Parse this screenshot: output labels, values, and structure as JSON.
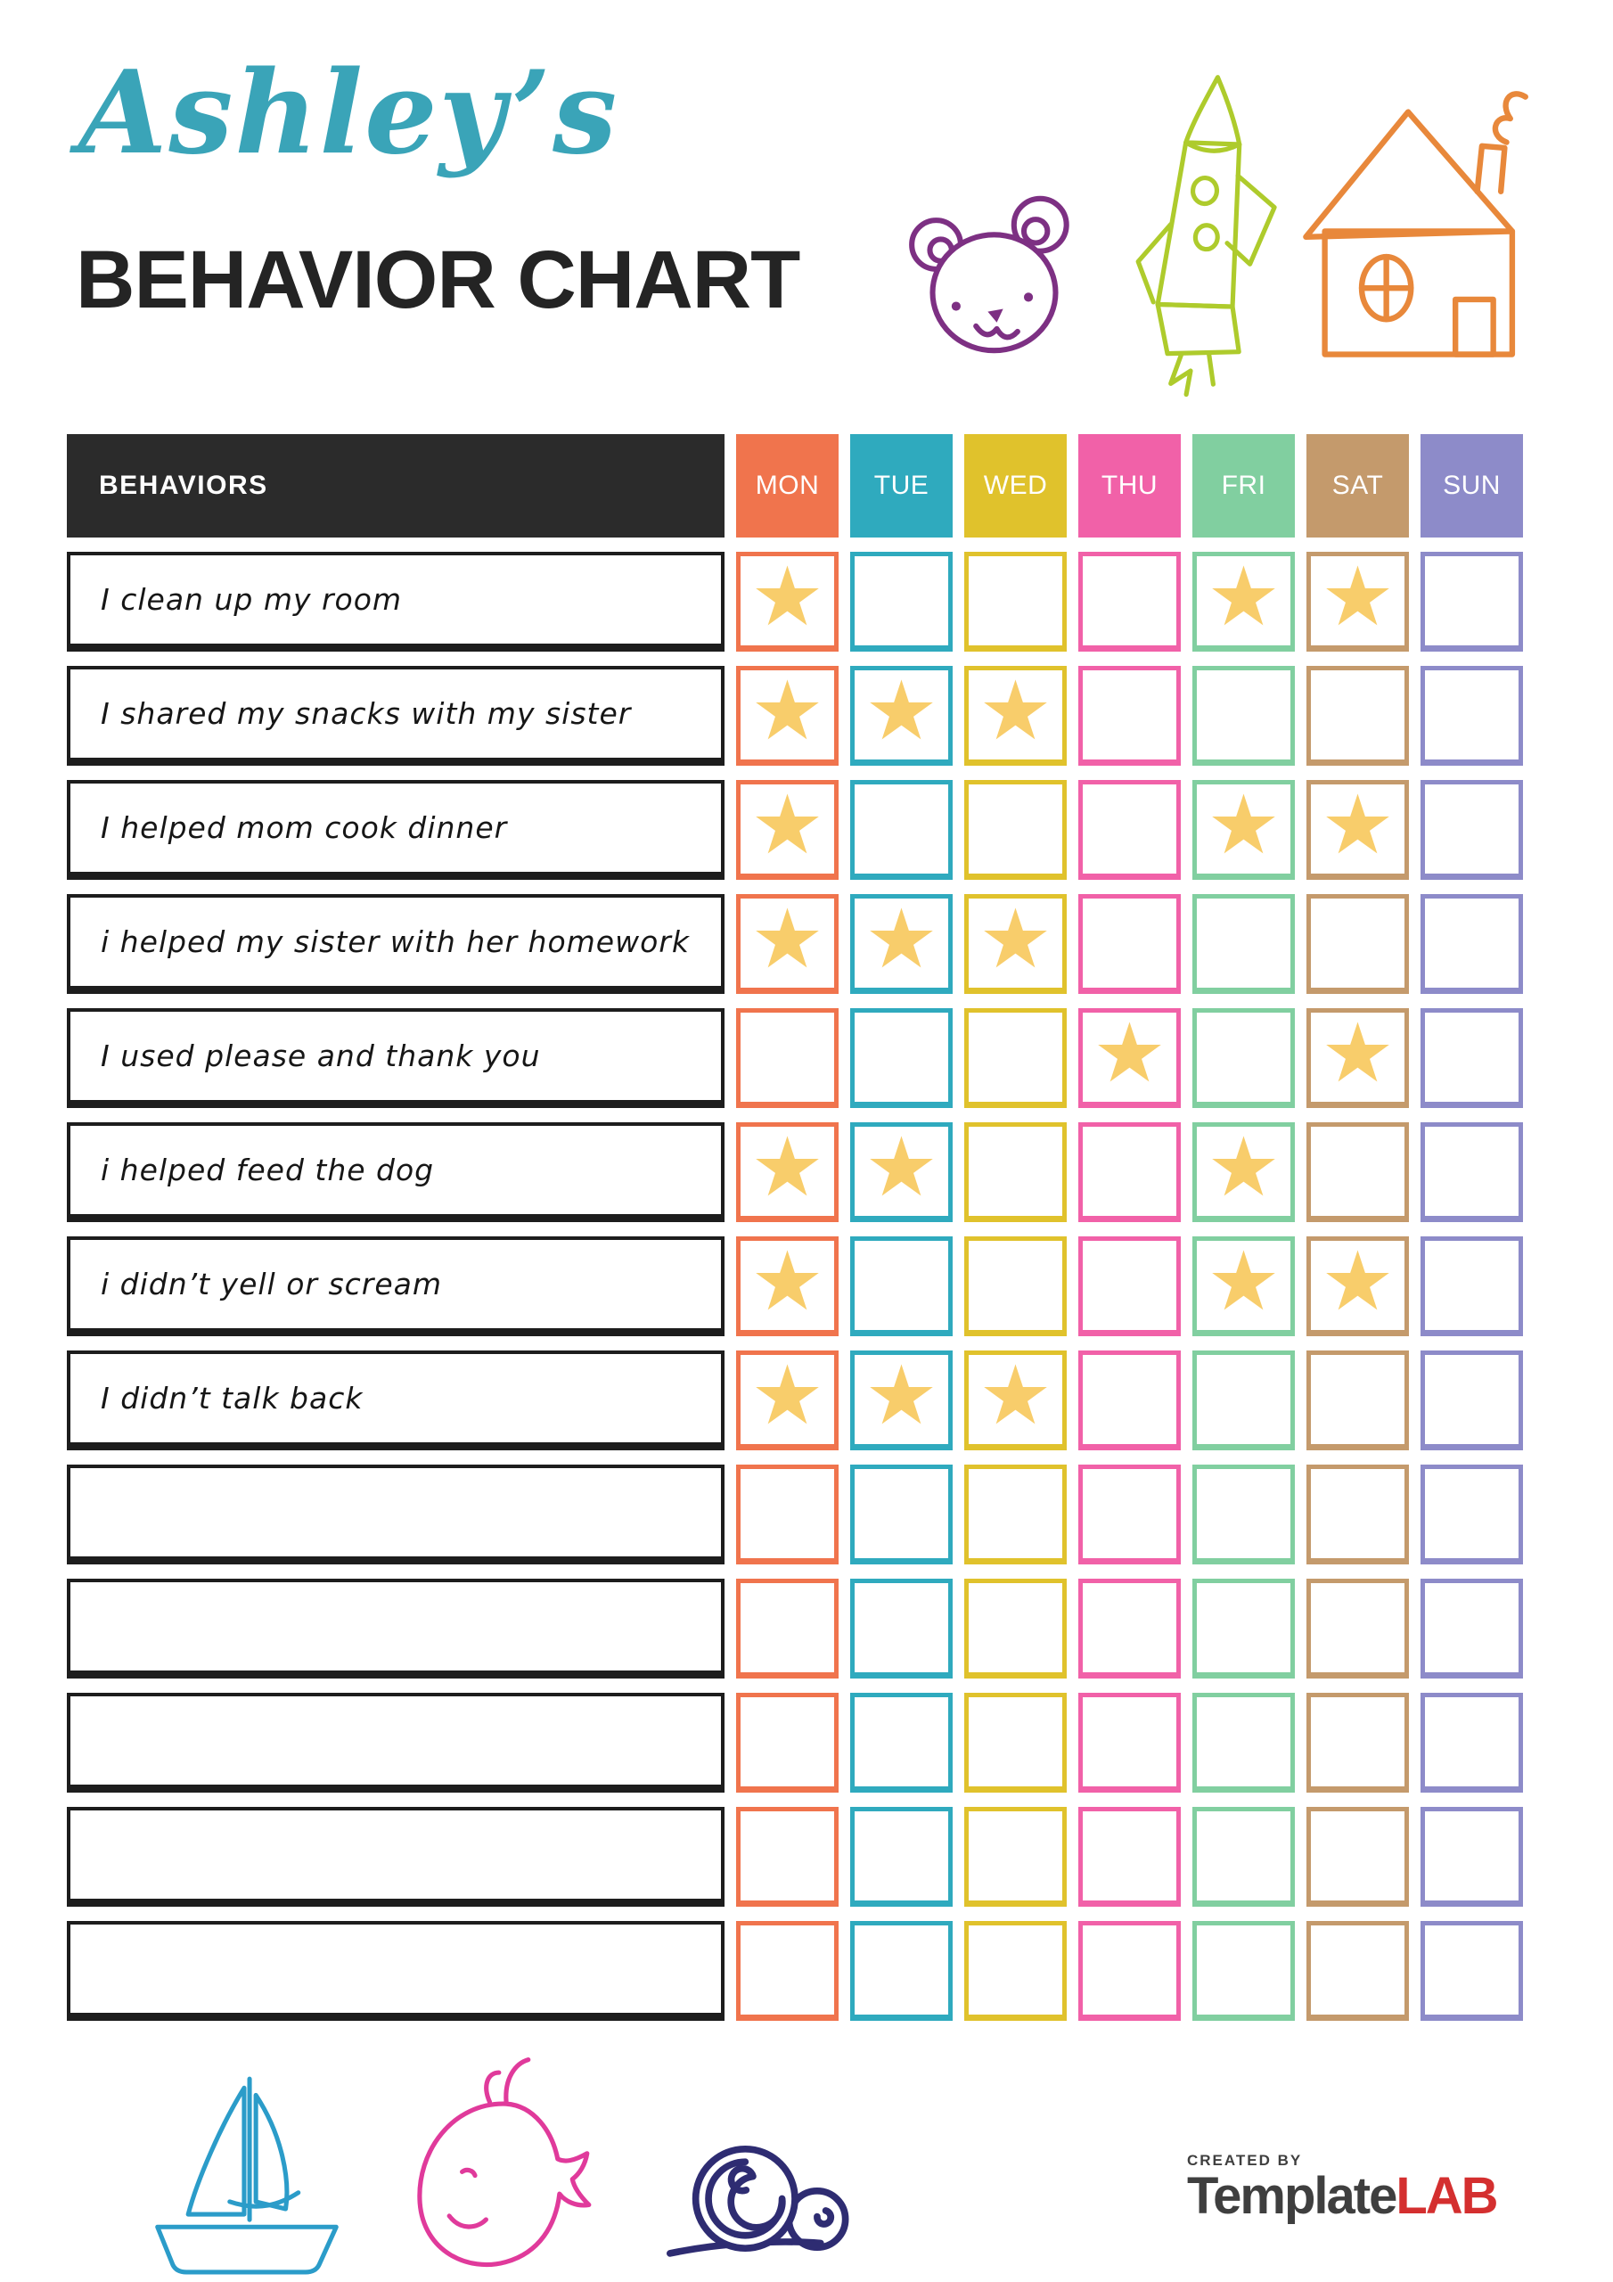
{
  "colors": {
    "title_script": "#3AA4B8",
    "title_main": "#242424",
    "table_header_bg": "#2B2B2B",
    "row_border": "#1D1D1D",
    "star": "#F8CD6B",
    "bear": "#7D3083",
    "rocket": "#AECB2C",
    "house": "#E8883B",
    "sailboat": "#2B9CC9",
    "whale": "#E03A9B",
    "snail": "#2E2C72",
    "brand_text": "#3F3F3F",
    "brand_lab": "#D42F2F"
  },
  "header": {
    "title_script": "Ashley’s",
    "title_main": "BEHAVIOR CHART"
  },
  "icons": {
    "top_doodles": [
      "bear-icon",
      "rocket-icon",
      "house-icon"
    ],
    "bottom_doodles": [
      "sailboat-icon",
      "whale-icon",
      "snail-icon"
    ],
    "star_glyph": "★"
  },
  "table": {
    "behaviors_header": "BEHAVIORS",
    "days": [
      {
        "label": "MON",
        "color": "#F0744D"
      },
      {
        "label": "TUE",
        "color": "#2FAABE"
      },
      {
        "label": "WED",
        "color": "#E0C22C"
      },
      {
        "label": "THU",
        "color": "#F161A8"
      },
      {
        "label": "FRI",
        "color": "#81CFA0"
      },
      {
        "label": "SAT",
        "color": "#C49A6C"
      },
      {
        "label": "SUN",
        "color": "#8D8BC9"
      }
    ],
    "rows": [
      {
        "label": "I clean up my room",
        "stars": [
          0,
          4,
          5
        ]
      },
      {
        "label": "I shared my snacks with my sister",
        "stars": [
          0,
          1,
          2
        ]
      },
      {
        "label": "I helped mom cook dinner",
        "stars": [
          0,
          4,
          5
        ]
      },
      {
        "label": "i helped my sister with her homework",
        "stars": [
          0,
          1,
          2
        ]
      },
      {
        "label": "I used please and thank you",
        "stars": [
          3,
          5
        ]
      },
      {
        "label": "i helped feed the dog",
        "stars": [
          0,
          1,
          4
        ]
      },
      {
        "label": "i didn’t yell or scream",
        "stars": [
          0,
          4,
          5
        ]
      },
      {
        "label": "I didn’t talk back",
        "stars": [
          0,
          1,
          2
        ]
      },
      {
        "label": "",
        "stars": []
      },
      {
        "label": "",
        "stars": []
      },
      {
        "label": "",
        "stars": []
      },
      {
        "label": "",
        "stars": []
      },
      {
        "label": "",
        "stars": []
      }
    ]
  },
  "footer": {
    "created_by": "CREATED BY",
    "brand_part1": "Template",
    "brand_part2": "LAB"
  }
}
